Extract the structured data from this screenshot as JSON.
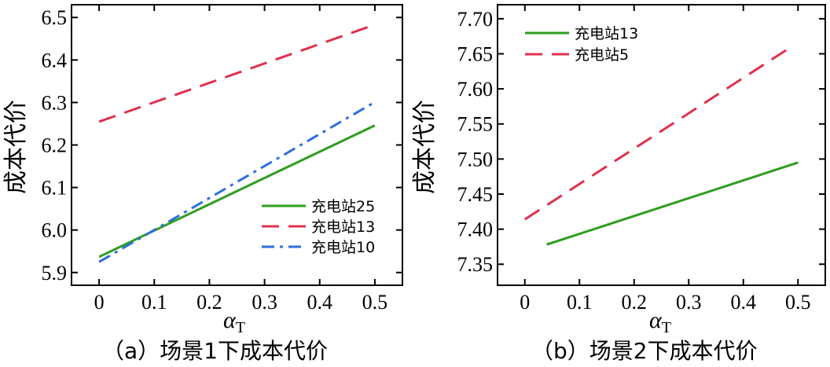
{
  "chart_data": [
    {
      "type": "line",
      "caption": "（a）场景1下成本代价",
      "xlabel": "α",
      "xlabel_sub": "T",
      "ylabel": "成本代价",
      "xlim": [
        -0.05,
        0.55
      ],
      "ylim": [
        5.87,
        6.53
      ],
      "xticks": [
        "0",
        "0.1",
        "0.2",
        "0.3",
        "0.4",
        "0.5"
      ],
      "yticks": [
        "5.9",
        "6.0",
        "6.1",
        "6.2",
        "6.3",
        "6.4",
        "6.5"
      ],
      "legend_position": "bottom-right",
      "series": [
        {
          "name": "充电站25",
          "style": "solid",
          "color": "#2e9e1f",
          "x": [
            0.0,
            0.5
          ],
          "y": [
            5.937,
            6.246
          ]
        },
        {
          "name": "充电站13",
          "style": "dashed",
          "color": "#e0304e",
          "x": [
            0.0,
            0.5
          ],
          "y": [
            6.255,
            6.483
          ]
        },
        {
          "name": "充电站10",
          "style": "dashdot",
          "color": "#2e6fe0",
          "x": [
            0.0,
            0.5
          ],
          "y": [
            5.925,
            6.301
          ]
        }
      ]
    },
    {
      "type": "line",
      "caption": "（b）场景2下成本代价",
      "xlabel": "α",
      "xlabel_sub": "T",
      "ylabel": "成本代价",
      "xlim": [
        -0.05,
        0.55
      ],
      "ylim": [
        7.32,
        7.72
      ],
      "xticks": [
        "0",
        "0.1",
        "0.2",
        "0.3",
        "0.4",
        "0.5"
      ],
      "yticks": [
        "7.35",
        "7.40",
        "7.45",
        "7.50",
        "7.55",
        "7.60",
        "7.65",
        "7.70"
      ],
      "legend_position": "top-left",
      "series": [
        {
          "name": "充电站13",
          "style": "solid",
          "color": "#2e9e1f",
          "x": [
            0.04,
            0.5
          ],
          "y": [
            7.378,
            7.495
          ]
        },
        {
          "name": "充电站5",
          "style": "dashed",
          "color": "#e0304e",
          "x": [
            0.0,
            0.48
          ],
          "y": [
            7.414,
            7.656
          ]
        }
      ]
    }
  ]
}
